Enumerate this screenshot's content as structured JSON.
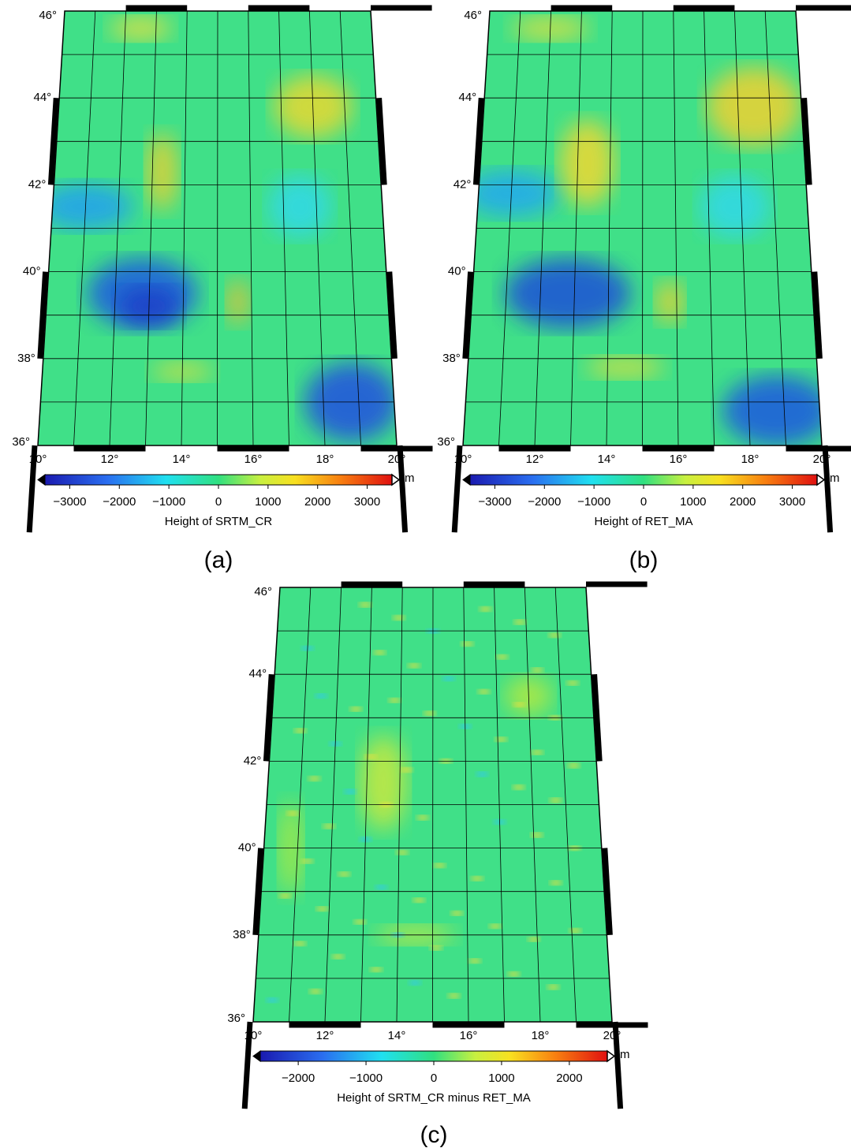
{
  "panels": [
    {
      "lat_labels": [
        "46°",
        "44°",
        "42°",
        "40°",
        "38°",
        "36°"
      ],
      "lon_labels": [
        "10°",
        "12°",
        "14°",
        "16°",
        "18°",
        "20°"
      ],
      "colorbar": {
        "range": [
          -3500,
          3500
        ],
        "ticks": [
          {
            "value": -3000,
            "label": "−3000"
          },
          {
            "value": -2000,
            "label": "−2000"
          },
          {
            "value": -1000,
            "label": "−1000"
          },
          0,
          1000,
          2000,
          3000
        ],
        "unit": "m",
        "label": "Height of SRTM_CR"
      },
      "caption": "(a)"
    },
    {
      "lat_labels": [
        "46°",
        "44°",
        "42°",
        "40°",
        "38°",
        "36°"
      ],
      "lon_labels": [
        "10°",
        "12°",
        "14°",
        "16°",
        "18°",
        "20°"
      ],
      "colorbar": {
        "range": [
          -3500,
          3500
        ],
        "ticks": [
          {
            "value": -3000,
            "label": "−3000"
          },
          {
            "value": -2000,
            "label": "−2000"
          },
          {
            "value": -1000,
            "label": "−1000"
          },
          0,
          1000,
          2000,
          3000
        ],
        "unit": "m",
        "label": "Height of RET_MA"
      },
      "caption": "(b)"
    },
    {
      "lat_labels": [
        "46°",
        "44°",
        "42°",
        "40°",
        "38°",
        "36°"
      ],
      "lon_labels": [
        "10°",
        "12°",
        "14°",
        "16°",
        "18°",
        "20°"
      ],
      "colorbar": {
        "range": [
          -2560,
          2560
        ],
        "ticks": [
          {
            "value": -2000,
            "label": "−2000"
          },
          {
            "value": -1000,
            "label": "−1000"
          },
          0,
          1000,
          2000
        ],
        "unit": "m",
        "label": "Height of SRTM_CR minus RET_MA"
      },
      "caption": "(c)"
    }
  ]
}
